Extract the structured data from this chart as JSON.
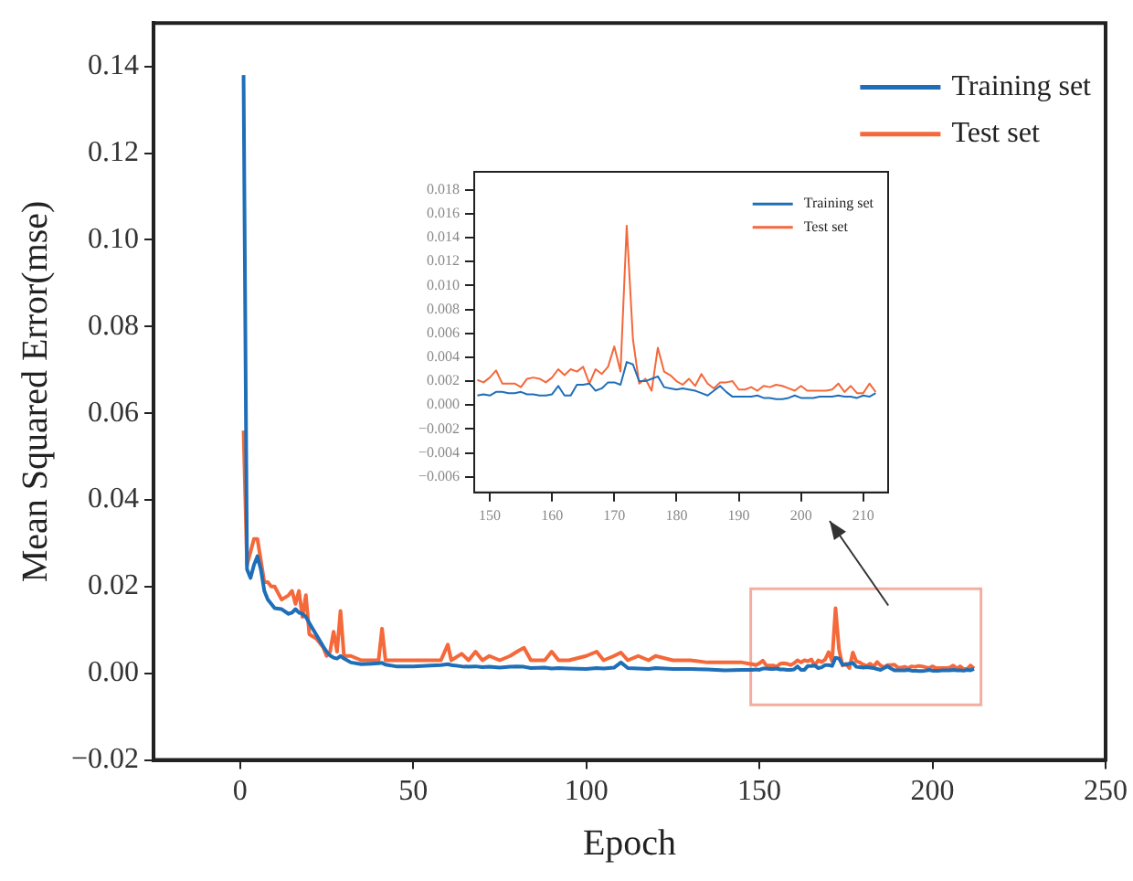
{
  "chart_data": [
    {
      "type": "line",
      "xlabel": "Epoch",
      "ylabel": "Mean Squared Error(mse)",
      "legend": "top right",
      "grid": false,
      "marker": "none",
      "xlim": [
        -25,
        250
      ],
      "xticks": [
        0,
        50,
        100,
        150,
        200,
        250
      ],
      "ylim": [
        -0.02,
        0.15
      ],
      "yticks": [
        {
          "value": -0.02,
          "label": "−0.02"
        },
        {
          "value": 0,
          "label": "0.00"
        },
        0.02,
        0.04,
        0.06,
        0.08,
        {
          "value": 0.1,
          "label": "0.10"
        },
        0.12,
        0.14
      ],
      "x": [
        1,
        2,
        3,
        4,
        5,
        6,
        7,
        8,
        9,
        10,
        12,
        14,
        15,
        16,
        17,
        18,
        19,
        20,
        22,
        24,
        25,
        26,
        27,
        28,
        29,
        30,
        32,
        35,
        38,
        40,
        41,
        42,
        45,
        50,
        55,
        58,
        60,
        61,
        64,
        66,
        68,
        70,
        72,
        75,
        78,
        80,
        82,
        84,
        88,
        90,
        92,
        95,
        100,
        103,
        105,
        108,
        110,
        112,
        115,
        118,
        120,
        125,
        130,
        135,
        140,
        145,
        147,
        148,
        149,
        150,
        151,
        152,
        153,
        154,
        155,
        156,
        157,
        158,
        159,
        160,
        161,
        162,
        163,
        164,
        165,
        166,
        167,
        168,
        169,
        170,
        171,
        172,
        173,
        174,
        175,
        176,
        177,
        178,
        179,
        180,
        181,
        182,
        183,
        184,
        185,
        186,
        187,
        188,
        189,
        190,
        191,
        192,
        193,
        194,
        195,
        196,
        197,
        198,
        199,
        200,
        201,
        202,
        203,
        204,
        205,
        206,
        207,
        208,
        209,
        210,
        211,
        212
      ],
      "series": [
        {
          "name": "Training set",
          "color": "#1f6fb8",
          "values": [
            0.138,
            0.024,
            0.022,
            0.025,
            0.027,
            0.024,
            0.019,
            0.017,
            0.016,
            0.015,
            0.0148,
            0.0137,
            0.014,
            0.0148,
            0.014,
            0.0137,
            0.013,
            0.0116,
            0.0089,
            0.0062,
            0.005,
            0.0041,
            0.0036,
            0.0034,
            0.004,
            0.0034,
            0.0025,
            0.0021,
            0.0022,
            0.0023,
            0.0024,
            0.002,
            0.0016,
            0.0016,
            0.0018,
            0.0019,
            0.0021,
            0.0019,
            0.0016,
            0.0015,
            0.0016,
            0.0014,
            0.0015,
            0.0013,
            0.0015,
            0.0016,
            0.0015,
            0.0012,
            0.0013,
            0.0011,
            0.0012,
            0.0011,
            0.001,
            0.0012,
            0.0011,
            0.0013,
            0.0025,
            0.0012,
            0.0011,
            0.001,
            0.0012,
            0.001,
            0.001,
            0.0009,
            0.0007,
            0.0008,
            0.0008,
            0.0008,
            0.0009,
            0.0008,
            0.0011,
            0.0011,
            0.001,
            0.001,
            0.0011,
            0.0009,
            0.0009,
            0.0008,
            0.0008,
            0.0009,
            0.0016,
            0.0008,
            0.0008,
            0.0017,
            0.0017,
            0.0018,
            0.0012,
            0.0014,
            0.0019,
            0.0019,
            0.0017,
            0.0036,
            0.0034,
            0.002,
            0.002,
            0.0022,
            0.0024,
            0.0015,
            0.0014,
            0.0013,
            0.0014,
            0.0013,
            0.0012,
            0.001,
            0.0008,
            0.0012,
            0.0016,
            0.0011,
            0.0007,
            0.0007,
            0.0007,
            0.0007,
            0.0008,
            0.0006,
            0.0006,
            0.0005,
            0.0005,
            0.0006,
            0.0008,
            0.0006,
            0.0006,
            0.0006,
            0.0007,
            0.0007,
            0.0007,
            0.0008,
            0.0007,
            0.0007,
            0.0006,
            0.0008,
            0.0007,
            0.001
          ]
        },
        {
          "name": "Test set",
          "color": "#f4683a",
          "values": [
            0.056,
            0.025,
            0.028,
            0.031,
            0.031,
            0.026,
            0.021,
            0.021,
            0.02,
            0.02,
            0.017,
            0.018,
            0.019,
            0.016,
            0.019,
            0.013,
            0.018,
            0.009,
            0.008,
            0.006,
            0.004,
            0.005,
            0.0096,
            0.005,
            0.0144,
            0.004,
            0.004,
            0.003,
            0.003,
            0.003,
            0.0103,
            0.003,
            0.003,
            0.003,
            0.003,
            0.003,
            0.0066,
            0.003,
            0.0045,
            0.003,
            0.005,
            0.003,
            0.004,
            0.003,
            0.004,
            0.005,
            0.0059,
            0.003,
            0.003,
            0.005,
            0.003,
            0.003,
            0.004,
            0.005,
            0.003,
            0.004,
            0.0048,
            0.003,
            0.004,
            0.003,
            0.004,
            0.003,
            0.003,
            0.0025,
            0.0025,
            0.0025,
            0.0022,
            0.0021,
            0.0019,
            0.0023,
            0.0029,
            0.0018,
            0.0018,
            0.0018,
            0.0015,
            0.0022,
            0.0023,
            0.0022,
            0.0019,
            0.0023,
            0.003,
            0.0025,
            0.003,
            0.0028,
            0.0032,
            0.0018,
            0.003,
            0.0026,
            0.0032,
            0.0049,
            0.0028,
            0.015,
            0.0055,
            0.0018,
            0.0022,
            0.0012,
            0.0048,
            0.0028,
            0.0025,
            0.002,
            0.0017,
            0.0022,
            0.0016,
            0.0026,
            0.0018,
            0.0014,
            0.0019,
            0.0019,
            0.002,
            0.0013,
            0.0013,
            0.0015,
            0.0012,
            0.0016,
            0.0015,
            0.0017,
            0.0016,
            0.0014,
            0.0012,
            0.0016,
            0.0012,
            0.0012,
            0.0012,
            0.0012,
            0.0013,
            0.0018,
            0.0011,
            0.0016,
            0.001,
            0.001,
            0.0018,
            0.0011
          ]
        }
      ]
    },
    {
      "type": "line",
      "legend": "top right",
      "grid": false,
      "marker": "none",
      "xlim": [
        147.5,
        214
      ],
      "xticks": [
        150,
        160,
        170,
        180,
        190,
        200,
        210
      ],
      "ylim": [
        -0.0073,
        0.0195
      ],
      "yticks": [
        {
          "value": -0.006,
          "label": "−0.006"
        },
        {
          "value": -0.004,
          "label": "−0.004"
        },
        {
          "value": -0.002,
          "label": "−0.002"
        },
        {
          "value": 0,
          "label": "0.000"
        },
        0.002,
        0.004,
        0.006,
        0.008,
        {
          "value": 0.01,
          "label": "0.010"
        },
        0.012,
        0.014,
        0.016,
        0.018
      ],
      "x": [
        148,
        149,
        150,
        151,
        152,
        153,
        154,
        155,
        156,
        157,
        158,
        159,
        160,
        161,
        162,
        163,
        164,
        165,
        166,
        167,
        168,
        169,
        170,
        171,
        172,
        173,
        174,
        175,
        176,
        177,
        178,
        179,
        180,
        181,
        182,
        183,
        184,
        185,
        186,
        187,
        188,
        189,
        190,
        191,
        192,
        193,
        194,
        195,
        196,
        197,
        198,
        199,
        200,
        201,
        202,
        203,
        204,
        205,
        206,
        207,
        208,
        209,
        210,
        211,
        212
      ],
      "series": [
        {
          "name": "Training set",
          "color": "#1f6fb8",
          "values": [
            0.0008,
            0.0009,
            0.0008,
            0.0011,
            0.0011,
            0.001,
            0.001,
            0.0011,
            0.0009,
            0.0009,
            0.0008,
            0.0008,
            0.0009,
            0.0016,
            0.0008,
            0.0008,
            0.0017,
            0.0017,
            0.0018,
            0.0012,
            0.0014,
            0.0019,
            0.0019,
            0.0017,
            0.0036,
            0.0034,
            0.002,
            0.002,
            0.0022,
            0.0024,
            0.0015,
            0.0014,
            0.0013,
            0.0014,
            0.0013,
            0.0012,
            0.001,
            0.0008,
            0.0012,
            0.0016,
            0.0011,
            0.0007,
            0.0007,
            0.0007,
            0.0007,
            0.0008,
            0.0006,
            0.0006,
            0.0005,
            0.0005,
            0.0006,
            0.0008,
            0.0006,
            0.0006,
            0.0006,
            0.0007,
            0.0007,
            0.0007,
            0.0008,
            0.0007,
            0.0007,
            0.0006,
            0.0008,
            0.0007,
            0.001
          ]
        },
        {
          "name": "Test set",
          "color": "#f4683a",
          "values": [
            0.0021,
            0.0019,
            0.0023,
            0.0029,
            0.0018,
            0.0018,
            0.0018,
            0.0015,
            0.0022,
            0.0023,
            0.0022,
            0.0019,
            0.0023,
            0.003,
            0.0025,
            0.003,
            0.0028,
            0.0032,
            0.0018,
            0.003,
            0.0026,
            0.0032,
            0.0049,
            0.0028,
            0.015,
            0.0055,
            0.0018,
            0.0022,
            0.0012,
            0.0048,
            0.0028,
            0.0025,
            0.002,
            0.0017,
            0.0022,
            0.0016,
            0.0026,
            0.0018,
            0.0014,
            0.0019,
            0.0019,
            0.002,
            0.0013,
            0.0013,
            0.0015,
            0.0012,
            0.0016,
            0.0015,
            0.0017,
            0.0016,
            0.0014,
            0.0012,
            0.0016,
            0.0012,
            0.0012,
            0.0012,
            0.0012,
            0.0013,
            0.0018,
            0.0011,
            0.0016,
            0.001,
            0.001,
            0.0018,
            0.0011
          ]
        }
      ]
    }
  ]
}
